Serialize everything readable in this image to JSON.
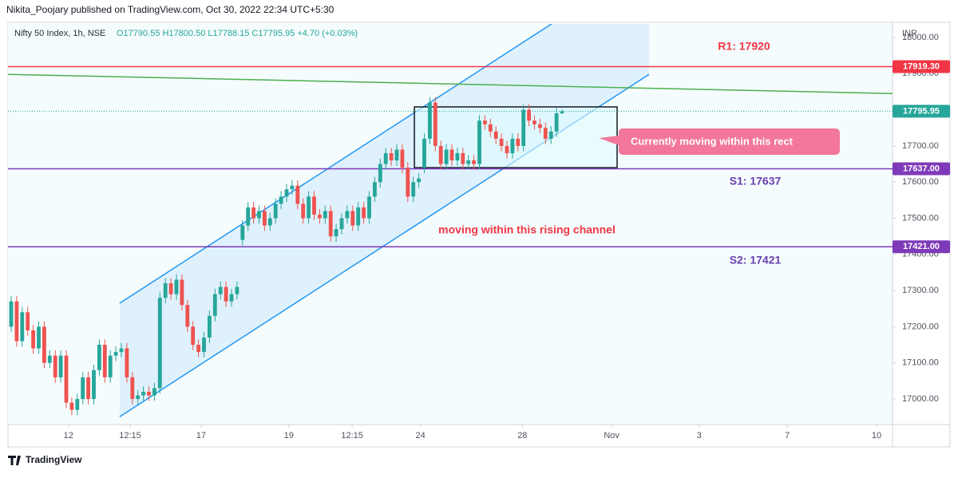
{
  "header": {
    "publisher": "Nikita_Poojary published on TradingView.com, Oct 30, 2022 22:34 UTC+5:30",
    "footer": "TradingView"
  },
  "chart_data": {
    "type": "candlestick",
    "title": "Nifty 50 Index, 1h, NSE",
    "ohlc_legend": "O17790.55 H17800.50 L17788.15 C17795.95 +4.70 (+0.03%)",
    "y_unit": "INR",
    "up_color": "#26a69a",
    "down_color": "#ef5350",
    "grid": false,
    "open": [
      17200,
      17270,
      17160,
      17240,
      17190,
      17140,
      17200,
      17100,
      17120,
      17060,
      17120,
      16990,
      16970,
      17000,
      17060,
      17000,
      17080,
      17150,
      17060,
      17120,
      17130,
      17140,
      17060,
      17000,
      17010,
      17020,
      17010,
      17030,
      17280,
      17320,
      17290,
      17330,
      17260,
      17200,
      17150,
      17130,
      17170,
      17230,
      17290,
      17310,
      17270,
      17290,
      17440,
      17480,
      17530,
      17500,
      17520,
      17480,
      17500,
      17540,
      17560,
      17580,
      17590,
      17540,
      17500,
      17560,
      17510,
      17500,
      17520,
      17450,
      17470,
      17500,
      17520,
      17480,
      17530,
      17500,
      17560,
      17600,
      17650,
      17680,
      17660,
      17690,
      17640,
      17560,
      17600,
      17640,
      17720,
      17820,
      17700,
      17650,
      17690,
      17660,
      17680,
      17650,
      17660,
      17650,
      17770,
      17760,
      17740,
      17720,
      17700,
      17680,
      17720,
      17700,
      17800,
      17770,
      17760,
      17750,
      17720,
      17740,
      17790.55
    ],
    "high": [
      17285,
      17285,
      17255,
      17255,
      17205,
      17215,
      17215,
      17135,
      17135,
      17135,
      17135,
      17005,
      17015,
      17075,
      17075,
      17095,
      17165,
      17165,
      17135,
      17145,
      17155,
      17155,
      17075,
      17025,
      17035,
      17035,
      17045,
      17295,
      17335,
      17335,
      17345,
      17345,
      17275,
      17215,
      17165,
      17185,
      17245,
      17305,
      17325,
      17325,
      17305,
      17325,
      17495,
      17545,
      17545,
      17535,
      17535,
      17515,
      17555,
      17575,
      17595,
      17605,
      17605,
      17555,
      17575,
      17575,
      17525,
      17535,
      17535,
      17485,
      17515,
      17535,
      17535,
      17545,
      17545,
      17575,
      17615,
      17665,
      17695,
      17695,
      17705,
      17705,
      17655,
      17615,
      17625,
      17735,
      17835,
      17835,
      17715,
      17705,
      17705,
      17695,
      17695,
      17675,
      17675,
      17785,
      17785,
      17775,
      17755,
      17735,
      17715,
      17735,
      17735,
      17815,
      17815,
      17785,
      17775,
      17765,
      17755,
      17805,
      17800.5
    ],
    "low": [
      17185,
      17145,
      17145,
      17175,
      17125,
      17125,
      17085,
      17085,
      17045,
      17045,
      16975,
      16955,
      16955,
      16985,
      16985,
      16985,
      17065,
      17045,
      17045,
      17105,
      17115,
      17045,
      16985,
      16985,
      16995,
      16995,
      16995,
      17015,
      17265,
      17275,
      17275,
      17245,
      17185,
      17135,
      17115,
      17115,
      17155,
      17215,
      17275,
      17255,
      17255,
      17275,
      17425,
      17465,
      17485,
      17485,
      17465,
      17465,
      17485,
      17525,
      17545,
      17565,
      17525,
      17485,
      17485,
      17495,
      17485,
      17485,
      17435,
      17435,
      17455,
      17485,
      17465,
      17465,
      17485,
      17485,
      17545,
      17585,
      17635,
      17645,
      17645,
      17625,
      17545,
      17545,
      17585,
      17625,
      17705,
      17685,
      17635,
      17635,
      17645,
      17645,
      17635,
      17635,
      17635,
      17635,
      17745,
      17725,
      17705,
      17685,
      17665,
      17665,
      17685,
      17685,
      17755,
      17745,
      17735,
      17705,
      17705,
      17725,
      17788.15
    ],
    "close": [
      17270,
      17160,
      17240,
      17190,
      17140,
      17200,
      17100,
      17120,
      17060,
      17120,
      16990,
      16970,
      17000,
      17060,
      17000,
      17080,
      17150,
      17060,
      17120,
      17130,
      17140,
      17060,
      17000,
      17010,
      17020,
      17010,
      17030,
      17280,
      17320,
      17290,
      17330,
      17260,
      17200,
      17150,
      17130,
      17170,
      17230,
      17290,
      17310,
      17270,
      17290,
      17310,
      17480,
      17530,
      17500,
      17520,
      17480,
      17500,
      17540,
      17560,
      17580,
      17590,
      17540,
      17500,
      17560,
      17510,
      17500,
      17520,
      17450,
      17470,
      17500,
      17520,
      17480,
      17530,
      17500,
      17560,
      17600,
      17650,
      17680,
      17660,
      17690,
      17640,
      17560,
      17600,
      17610,
      17720,
      17820,
      17700,
      17650,
      17690,
      17660,
      17680,
      17650,
      17660,
      17650,
      17770,
      17760,
      17740,
      17720,
      17700,
      17680,
      17720,
      17700,
      17800,
      17770,
      17760,
      17750,
      17720,
      17740,
      17790,
      17795.95
    ],
    "xlim": [
      -0.58,
      160
    ],
    "xticks": [
      {
        "value": 10.4,
        "label": "12"
      },
      {
        "value": 21.6,
        "label": "12:15"
      },
      {
        "value": 34.5,
        "label": "17"
      },
      {
        "value": 50.4,
        "label": "19"
      },
      {
        "value": 61.9,
        "label": "12:15"
      },
      {
        "value": 74.3,
        "label": "24"
      },
      {
        "value": 92.8,
        "label": "28"
      },
      {
        "value": 109,
        "label": "Nov"
      },
      {
        "value": 124.9,
        "label": "3"
      },
      {
        "value": 140.9,
        "label": "7"
      },
      {
        "value": 157.1,
        "label": "10"
      }
    ],
    "ylim": [
      16929.4,
      18037.5
    ],
    "yticks": [
      {
        "value": 17000,
        "label": "17000.00"
      },
      {
        "value": 17100,
        "label": "17100.00"
      },
      {
        "value": 17200,
        "label": "17200.00"
      },
      {
        "value": 17300,
        "label": "17300.00"
      },
      {
        "value": 17400,
        "label": "17400.00"
      },
      {
        "value": 17500,
        "label": "17500.00"
      },
      {
        "value": 17600,
        "label": "17600.00"
      },
      {
        "value": 17700,
        "label": "17700.00"
      },
      {
        "value": 17800,
        "label": "17800.00"
      },
      {
        "value": 17900,
        "label": "17900.00"
      },
      {
        "value": 18000,
        "label": "18000.00"
      }
    ],
    "hlines": [
      {
        "value": 17919.3,
        "label": "17919.30",
        "color": "#f23645",
        "style": "solid"
      },
      {
        "value": 17795.95,
        "label": "17795.95",
        "color": "#26a69a",
        "style": "dotted"
      },
      {
        "value": 17637,
        "label": "17637.00",
        "color": "#7e3ab8",
        "style": "solid"
      },
      {
        "value": 17421,
        "label": "17421.00",
        "color": "#7e3ab8",
        "style": "solid"
      }
    ],
    "trendline": {
      "x": [
        -0.58,
        160
      ],
      "y": [
        17898,
        17845
      ],
      "color": "#4caf50"
    },
    "channel": {
      "x": [
        19.7,
        115.8
      ],
      "upper": [
        17265,
        18212
      ],
      "lower": [
        16951,
        17898
      ],
      "color": "#2196f3"
    },
    "rect": {
      "x": [
        73.2,
        110
      ],
      "y": [
        17640,
        17808
      ],
      "color": "#131722"
    },
    "r1_label": "R1: 17920",
    "s1_label": "S1: 17637",
    "s2_label": "S2: 17421",
    "channel_note": "moving within this rising channel",
    "rect_note": "Currently moving within this rect"
  }
}
